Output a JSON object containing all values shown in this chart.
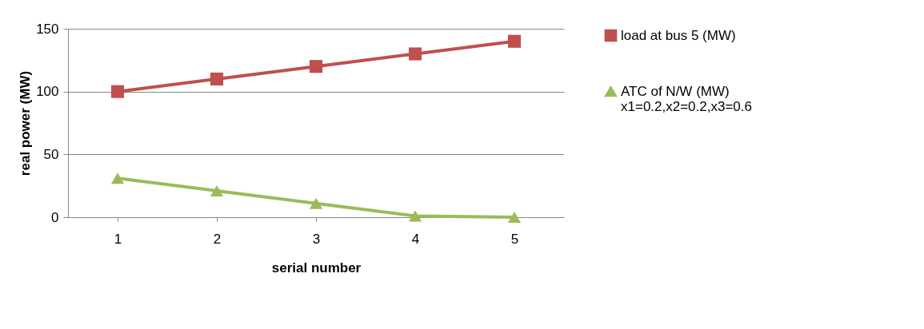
{
  "chart_data": {
    "type": "line",
    "xlabel": "serial number",
    "ylabel": "real power (MW)",
    "categories": [
      "1",
      "2",
      "3",
      "4",
      "5"
    ],
    "series": [
      {
        "name": "load at bus 5 (MW)",
        "color": "#c0504d",
        "marker": "square",
        "values": [
          100,
          110,
          120,
          130,
          140
        ]
      },
      {
        "name": "ATC of N/W (MW)\nx1=0.2,x2=0.2,x3=0.6",
        "color": "#9bbb59",
        "marker": "triangle",
        "values": [
          31,
          21,
          11,
          1,
          0
        ]
      }
    ],
    "ylim": [
      0,
      150
    ],
    "yticks": [
      0,
      50,
      100,
      150
    ],
    "grid": "y",
    "legend": "right"
  }
}
